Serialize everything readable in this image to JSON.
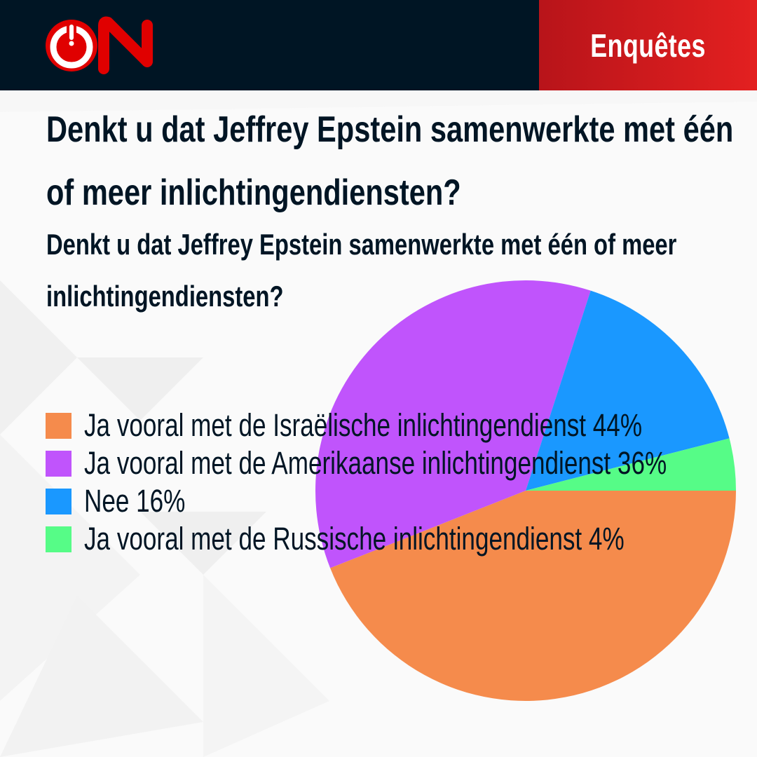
{
  "header": {
    "logo": {
      "text": "ON",
      "icon": "power-icon",
      "color": "#e00000"
    },
    "section_label": "Enquêtes",
    "background": "#001524",
    "accent": "#d81b1b"
  },
  "title": {
    "main": "Denkt u dat Jeffrey Epstein samenwerkte met één of meer inlichtingendiensten?",
    "subtitle": "Denkt u dat Jeffrey Epstein samenwerkte met één of meer inlichtingendiensten?"
  },
  "legend": {
    "items": [
      {
        "label": "Ja vooral met de Israëlische inlichtingendienst 44%",
        "color": "#f58b4c"
      },
      {
        "label": "Ja vooral met de Amerikaanse inlichtingendienst 36%",
        "color": "#c054fc"
      },
      {
        "label": "Nee 16%",
        "color": "#1a98ff"
      },
      {
        "label": "Ja vooral met de Russische inlichtingendienst 4%",
        "color": "#56fc87"
      }
    ]
  },
  "chart_data": {
    "type": "pie",
    "title": "Denkt u dat Jeffrey Epstein samenwerkte met één of meer inlichtingendiensten?",
    "categories": [
      "Ja vooral met de Israëlische inlichtingendienst",
      "Ja vooral met de Amerikaanse inlichtingendienst",
      "Nee",
      "Ja vooral met de Russische inlichtingendienst"
    ],
    "values": [
      44,
      36,
      16,
      4
    ],
    "unit": "%",
    "colors": [
      "#f58b4c",
      "#c054fc",
      "#1a98ff",
      "#56fc87"
    ],
    "start_angle": "3 o'clock",
    "direction": "clockwise",
    "legend_position": "left overlay"
  }
}
